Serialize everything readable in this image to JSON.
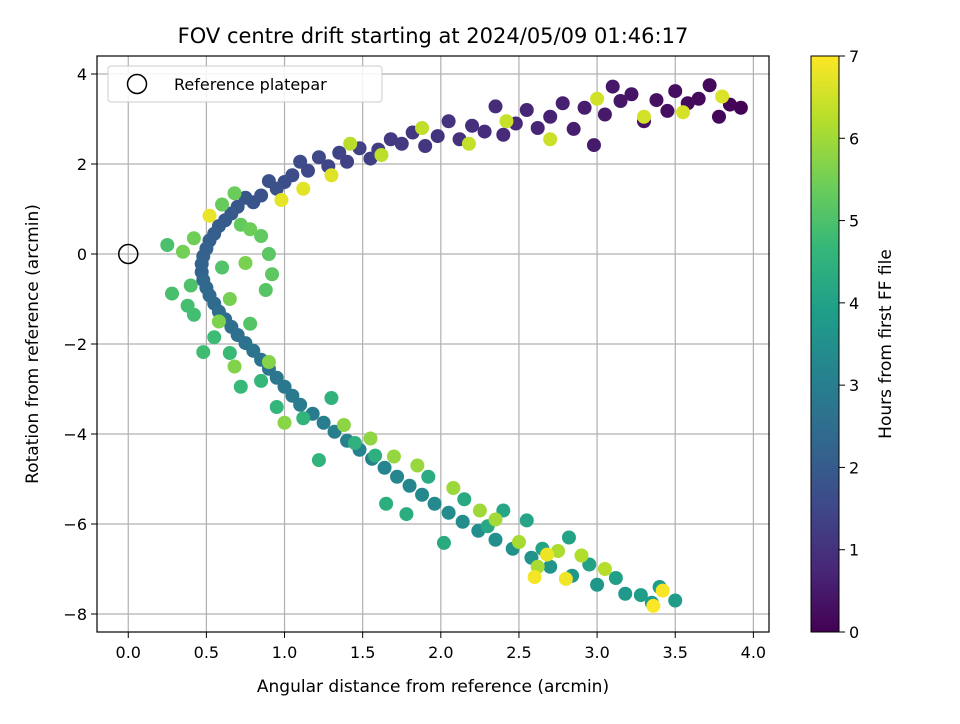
{
  "chart_data": {
    "type": "scatter",
    "title": "FOV centre drift starting at 2024/05/09 01:46:17",
    "xlabel": "Angular distance from reference (arcmin)",
    "ylabel": "Rotation from reference (arcmin)",
    "xlim": [
      -0.2,
      4.1
    ],
    "ylim": [
      -8.4,
      4.4
    ],
    "x_ticks": [
      "0.0",
      "0.5",
      "1.0",
      "1.5",
      "2.0",
      "2.5",
      "3.0",
      "3.5",
      "4.0"
    ],
    "y_ticks": [
      "4",
      "2",
      "0",
      "−2",
      "−4",
      "−6",
      "−8"
    ],
    "grid": true,
    "legend": {
      "placement": "top-left",
      "entries": [
        "Reference platepar"
      ]
    },
    "reference_point": {
      "x": 0.0,
      "y": 0.0
    },
    "colorbar": {
      "label": "Hours from first FF file",
      "range": [
        0,
        7
      ],
      "ticks": [
        "0",
        "1",
        "2",
        "3",
        "4",
        "5",
        "6",
        "7"
      ],
      "colormap": "viridis"
    },
    "series": [
      {
        "color_by": "hours",
        "points": [
          {
            "x": 3.92,
            "y": 3.25,
            "h": 0.05
          },
          {
            "x": 3.85,
            "y": 3.32,
            "h": 0.08
          },
          {
            "x": 3.78,
            "y": 3.05,
            "h": 0.12
          },
          {
            "x": 3.72,
            "y": 3.75,
            "h": 0.15
          },
          {
            "x": 3.65,
            "y": 3.45,
            "h": 0.18
          },
          {
            "x": 3.58,
            "y": 3.35,
            "h": 0.22
          },
          {
            "x": 3.5,
            "y": 3.62,
            "h": 0.25
          },
          {
            "x": 3.45,
            "y": 3.18,
            "h": 0.28
          },
          {
            "x": 3.38,
            "y": 3.42,
            "h": 0.32
          },
          {
            "x": 3.3,
            "y": 2.95,
            "h": 0.35
          },
          {
            "x": 3.22,
            "y": 3.55,
            "h": 0.38
          },
          {
            "x": 3.15,
            "y": 3.4,
            "h": 0.42
          },
          {
            "x": 3.1,
            "y": 3.72,
            "h": 0.45
          },
          {
            "x": 3.05,
            "y": 3.1,
            "h": 0.48
          },
          {
            "x": 2.98,
            "y": 2.42,
            "h": 0.52
          },
          {
            "x": 2.92,
            "y": 3.25,
            "h": 0.55
          },
          {
            "x": 2.85,
            "y": 2.78,
            "h": 0.58
          },
          {
            "x": 2.78,
            "y": 3.35,
            "h": 0.62
          },
          {
            "x": 2.7,
            "y": 3.05,
            "h": 0.66
          },
          {
            "x": 2.62,
            "y": 2.8,
            "h": 0.7
          },
          {
            "x": 2.55,
            "y": 3.2,
            "h": 0.74
          },
          {
            "x": 2.48,
            "y": 2.9,
            "h": 0.78
          },
          {
            "x": 2.4,
            "y": 2.65,
            "h": 0.82
          },
          {
            "x": 2.35,
            "y": 3.28,
            "h": 0.86
          },
          {
            "x": 2.28,
            "y": 2.72,
            "h": 0.9
          },
          {
            "x": 2.2,
            "y": 2.85,
            "h": 0.94
          },
          {
            "x": 2.12,
            "y": 2.55,
            "h": 0.98
          },
          {
            "x": 2.05,
            "y": 2.95,
            "h": 1.02
          },
          {
            "x": 1.98,
            "y": 2.62,
            "h": 1.06
          },
          {
            "x": 1.9,
            "y": 2.4,
            "h": 1.1
          },
          {
            "x": 1.82,
            "y": 2.7,
            "h": 1.14
          },
          {
            "x": 1.75,
            "y": 2.45,
            "h": 1.18
          },
          {
            "x": 1.68,
            "y": 2.55,
            "h": 1.22
          },
          {
            "x": 1.6,
            "y": 2.32,
            "h": 1.26
          },
          {
            "x": 1.55,
            "y": 2.12,
            "h": 1.3
          },
          {
            "x": 1.48,
            "y": 2.35,
            "h": 1.34
          },
          {
            "x": 1.4,
            "y": 2.05,
            "h": 1.38
          },
          {
            "x": 1.35,
            "y": 2.25,
            "h": 1.42
          },
          {
            "x": 1.28,
            "y": 1.95,
            "h": 1.46
          },
          {
            "x": 1.22,
            "y": 2.15,
            "h": 1.5
          },
          {
            "x": 1.15,
            "y": 1.85,
            "h": 1.54
          },
          {
            "x": 1.1,
            "y": 2.05,
            "h": 1.58
          },
          {
            "x": 1.05,
            "y": 1.75,
            "h": 1.62
          },
          {
            "x": 1.0,
            "y": 1.6,
            "h": 1.66
          },
          {
            "x": 0.95,
            "y": 1.45,
            "h": 1.7
          },
          {
            "x": 0.9,
            "y": 1.62,
            "h": 1.74
          },
          {
            "x": 0.85,
            "y": 1.3,
            "h": 1.78
          },
          {
            "x": 0.8,
            "y": 1.15,
            "h": 1.82
          },
          {
            "x": 0.75,
            "y": 1.25,
            "h": 1.86
          },
          {
            "x": 0.7,
            "y": 1.05,
            "h": 1.9
          },
          {
            "x": 0.66,
            "y": 0.9,
            "h": 1.94
          },
          {
            "x": 0.62,
            "y": 0.75,
            "h": 1.98
          },
          {
            "x": 0.58,
            "y": 0.62,
            "h": 2.02
          },
          {
            "x": 0.55,
            "y": 0.45,
            "h": 2.06
          },
          {
            "x": 0.52,
            "y": 0.3,
            "h": 2.1
          },
          {
            "x": 0.5,
            "y": 0.12,
            "h": 2.14
          },
          {
            "x": 0.48,
            "y": -0.05,
            "h": 2.18
          },
          {
            "x": 0.47,
            "y": -0.22,
            "h": 2.22
          },
          {
            "x": 0.47,
            "y": -0.4,
            "h": 2.26
          },
          {
            "x": 0.48,
            "y": -0.58,
            "h": 2.3
          },
          {
            "x": 0.5,
            "y": -0.75,
            "h": 2.34
          },
          {
            "x": 0.52,
            "y": -0.92,
            "h": 2.38
          },
          {
            "x": 0.55,
            "y": -1.1,
            "h": 2.42
          },
          {
            "x": 0.58,
            "y": -1.28,
            "h": 2.46
          },
          {
            "x": 0.62,
            "y": -1.45,
            "h": 2.5
          },
          {
            "x": 0.66,
            "y": -1.62,
            "h": 2.54
          },
          {
            "x": 0.7,
            "y": -1.8,
            "h": 2.58
          },
          {
            "x": 0.75,
            "y": -1.98,
            "h": 2.62
          },
          {
            "x": 0.8,
            "y": -2.15,
            "h": 2.66
          },
          {
            "x": 0.85,
            "y": -2.35,
            "h": 2.7
          },
          {
            "x": 0.9,
            "y": -2.55,
            "h": 2.74
          },
          {
            "x": 0.95,
            "y": -2.75,
            "h": 2.78
          },
          {
            "x": 1.0,
            "y": -2.95,
            "h": 2.82
          },
          {
            "x": 1.05,
            "y": -3.15,
            "h": 2.86
          },
          {
            "x": 1.1,
            "y": -3.35,
            "h": 2.9
          },
          {
            "x": 1.18,
            "y": -3.55,
            "h": 2.94
          },
          {
            "x": 1.25,
            "y": -3.75,
            "h": 2.98
          },
          {
            "x": 1.32,
            "y": -3.95,
            "h": 3.02
          },
          {
            "x": 1.4,
            "y": -4.15,
            "h": 3.06
          },
          {
            "x": 1.48,
            "y": -4.35,
            "h": 3.1
          },
          {
            "x": 1.56,
            "y": -4.55,
            "h": 3.14
          },
          {
            "x": 1.64,
            "y": -4.75,
            "h": 3.18
          },
          {
            "x": 1.72,
            "y": -4.95,
            "h": 3.22
          },
          {
            "x": 1.8,
            "y": -5.15,
            "h": 3.26
          },
          {
            "x": 1.88,
            "y": -5.35,
            "h": 3.3
          },
          {
            "x": 1.96,
            "y": -5.55,
            "h": 3.34
          },
          {
            "x": 2.05,
            "y": -5.75,
            "h": 3.38
          },
          {
            "x": 2.14,
            "y": -5.95,
            "h": 3.42
          },
          {
            "x": 2.24,
            "y": -6.15,
            "h": 3.46
          },
          {
            "x": 2.35,
            "y": -6.35,
            "h": 3.5
          },
          {
            "x": 2.46,
            "y": -6.55,
            "h": 3.54
          },
          {
            "x": 2.58,
            "y": -6.75,
            "h": 3.58
          },
          {
            "x": 2.7,
            "y": -6.95,
            "h": 3.62
          },
          {
            "x": 2.84,
            "y": -7.15,
            "h": 3.66
          },
          {
            "x": 3.0,
            "y": -7.35,
            "h": 3.7
          },
          {
            "x": 3.18,
            "y": -7.55,
            "h": 3.74
          },
          {
            "x": 3.35,
            "y": -7.75,
            "h": 3.78
          },
          {
            "x": 3.5,
            "y": -7.7,
            "h": 3.82
          },
          {
            "x": 3.4,
            "y": -7.4,
            "h": 3.86
          },
          {
            "x": 3.28,
            "y": -7.58,
            "h": 3.9
          },
          {
            "x": 3.12,
            "y": -7.2,
            "h": 3.94
          },
          {
            "x": 2.95,
            "y": -6.9,
            "h": 3.98
          },
          {
            "x": 2.82,
            "y": -6.3,
            "h": 4.02
          },
          {
            "x": 2.65,
            "y": -6.55,
            "h": 4.06
          },
          {
            "x": 2.55,
            "y": -5.92,
            "h": 4.1
          },
          {
            "x": 2.4,
            "y": -5.7,
            "h": 4.14
          },
          {
            "x": 2.3,
            "y": -6.05,
            "h": 4.18
          },
          {
            "x": 2.15,
            "y": -5.45,
            "h": 4.22
          },
          {
            "x": 2.02,
            "y": -6.42,
            "h": 4.26
          },
          {
            "x": 1.92,
            "y": -4.95,
            "h": 4.3
          },
          {
            "x": 1.78,
            "y": -5.78,
            "h": 4.34
          },
          {
            "x": 1.65,
            "y": -5.55,
            "h": 4.38
          },
          {
            "x": 1.58,
            "y": -4.48,
            "h": 4.42
          },
          {
            "x": 1.45,
            "y": -4.2,
            "h": 4.46
          },
          {
            "x": 1.3,
            "y": -3.2,
            "h": 4.5
          },
          {
            "x": 1.22,
            "y": -4.58,
            "h": 4.54
          },
          {
            "x": 1.12,
            "y": -3.65,
            "h": 4.58
          },
          {
            "x": 0.95,
            "y": -3.4,
            "h": 4.62
          },
          {
            "x": 0.85,
            "y": -2.82,
            "h": 4.66
          },
          {
            "x": 0.72,
            "y": -2.95,
            "h": 4.7
          },
          {
            "x": 0.65,
            "y": -2.2,
            "h": 4.74
          },
          {
            "x": 0.55,
            "y": -1.85,
            "h": 4.78
          },
          {
            "x": 0.48,
            "y": -2.18,
            "h": 4.82
          },
          {
            "x": 0.42,
            "y": -1.35,
            "h": 4.86
          },
          {
            "x": 0.38,
            "y": -1.15,
            "h": 4.9
          },
          {
            "x": 0.28,
            "y": -0.88,
            "h": 4.94
          },
          {
            "x": 0.25,
            "y": 0.2,
            "h": 4.98
          },
          {
            "x": 0.4,
            "y": -0.7,
            "h": 5.02
          },
          {
            "x": 0.6,
            "y": -0.3,
            "h": 5.06
          },
          {
            "x": 0.78,
            "y": -1.55,
            "h": 5.1
          },
          {
            "x": 0.88,
            "y": -0.8,
            "h": 5.14
          },
          {
            "x": 0.9,
            "y": 0.0,
            "h": 5.18
          },
          {
            "x": 0.92,
            "y": -0.45,
            "h": 5.22
          },
          {
            "x": 0.85,
            "y": 0.4,
            "h": 5.26
          },
          {
            "x": 0.72,
            "y": 0.65,
            "h": 5.3
          },
          {
            "x": 0.6,
            "y": 1.1,
            "h": 5.34
          },
          {
            "x": 0.68,
            "y": 1.35,
            "h": 5.38
          },
          {
            "x": 0.78,
            "y": 0.55,
            "h": 5.42
          },
          {
            "x": 0.42,
            "y": 0.35,
            "h": 5.46
          },
          {
            "x": 0.35,
            "y": 0.05,
            "h": 5.5
          },
          {
            "x": 0.65,
            "y": -1.0,
            "h": 5.54
          },
          {
            "x": 0.75,
            "y": -0.2,
            "h": 5.58
          },
          {
            "x": 0.58,
            "y": -1.5,
            "h": 5.62
          },
          {
            "x": 0.68,
            "y": -2.5,
            "h": 5.66
          },
          {
            "x": 0.9,
            "y": -2.4,
            "h": 5.7
          },
          {
            "x": 1.0,
            "y": -3.75,
            "h": 5.74
          },
          {
            "x": 1.38,
            "y": -3.8,
            "h": 5.78
          },
          {
            "x": 1.55,
            "y": -4.1,
            "h": 5.82
          },
          {
            "x": 1.7,
            "y": -4.5,
            "h": 5.86
          },
          {
            "x": 1.85,
            "y": -4.7,
            "h": 5.9
          },
          {
            "x": 2.08,
            "y": -5.2,
            "h": 5.94
          },
          {
            "x": 2.25,
            "y": -5.7,
            "h": 5.98
          },
          {
            "x": 2.35,
            "y": -5.9,
            "h": 6.02
          },
          {
            "x": 2.5,
            "y": -6.4,
            "h": 6.06
          },
          {
            "x": 2.62,
            "y": -6.95,
            "h": 6.1
          },
          {
            "x": 2.75,
            "y": -6.6,
            "h": 6.14
          },
          {
            "x": 2.9,
            "y": -6.7,
            "h": 6.18
          },
          {
            "x": 3.05,
            "y": -7.0,
            "h": 6.22
          },
          {
            "x": 1.42,
            "y": 2.45,
            "h": 6.26
          },
          {
            "x": 1.62,
            "y": 2.2,
            "h": 6.3
          },
          {
            "x": 1.88,
            "y": 2.8,
            "h": 6.34
          },
          {
            "x": 2.18,
            "y": 2.45,
            "h": 6.38
          },
          {
            "x": 2.42,
            "y": 2.95,
            "h": 6.42
          },
          {
            "x": 2.7,
            "y": 2.55,
            "h": 6.46
          },
          {
            "x": 3.0,
            "y": 3.45,
            "h": 6.5
          },
          {
            "x": 3.3,
            "y": 3.05,
            "h": 6.54
          },
          {
            "x": 3.55,
            "y": 3.15,
            "h": 6.58
          },
          {
            "x": 3.8,
            "y": 3.5,
            "h": 6.62
          },
          {
            "x": 1.3,
            "y": 1.75,
            "h": 6.66
          },
          {
            "x": 1.12,
            "y": 1.45,
            "h": 6.7
          },
          {
            "x": 0.98,
            "y": 1.2,
            "h": 6.74
          },
          {
            "x": 0.52,
            "y": 0.85,
            "h": 6.78
          },
          {
            "x": 2.68,
            "y": -6.68,
            "h": 6.82
          },
          {
            "x": 2.8,
            "y": -7.22,
            "h": 6.86
          },
          {
            "x": 2.6,
            "y": -7.18,
            "h": 6.9
          },
          {
            "x": 3.42,
            "y": -7.48,
            "h": 6.94
          },
          {
            "x": 3.36,
            "y": -7.82,
            "h": 6.98
          }
        ]
      }
    ]
  }
}
